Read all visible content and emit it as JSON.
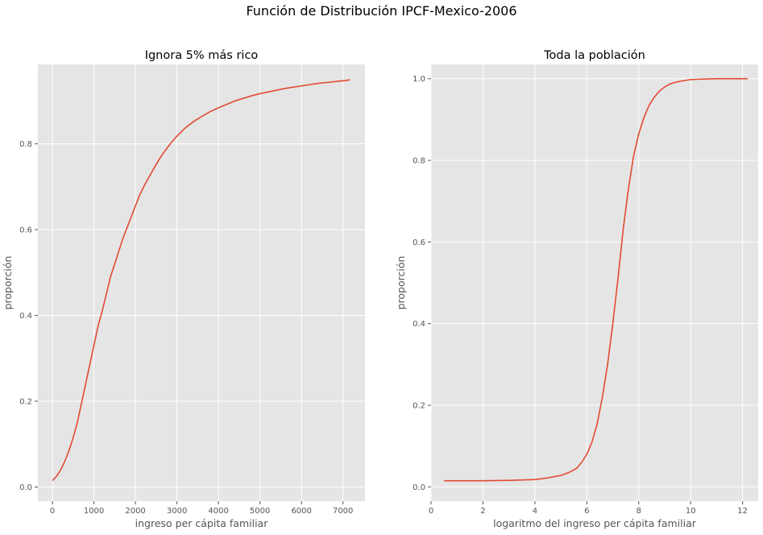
{
  "figure": {
    "title": "Función de Distribución IPCF-Mexico-2006"
  },
  "colors": {
    "panel_bg": "#E5E5E5",
    "grid": "#FFFFFF",
    "line": "#E24A33",
    "tick_text": "#555555"
  },
  "chart_data": [
    {
      "type": "line",
      "title": "Ignora 5% más rico",
      "xlabel": "ingreso per cápita familiar",
      "ylabel": "proporción",
      "xlim": [
        -350,
        7530
      ],
      "ylim": [
        -0.033,
        0.985
      ],
      "xticks": [
        0,
        1000,
        2000,
        3000,
        4000,
        5000,
        6000,
        7000
      ],
      "yticks": [
        0.0,
        0.2,
        0.4,
        0.6,
        0.8
      ],
      "xtick_labels": [
        "0",
        "1000",
        "2000",
        "3000",
        "4000",
        "5000",
        "6000",
        "7000"
      ],
      "ytick_labels": [
        "0.0",
        "0.2",
        "0.4",
        "0.6",
        "0.8"
      ],
      "grid": true,
      "series": [
        {
          "x": [
            0,
            100,
            200,
            300,
            400,
            500,
            600,
            700,
            800,
            900,
            1000,
            1100,
            1200,
            1300,
            1400,
            1500,
            1600,
            1700,
            1800,
            1900,
            2000,
            2100,
            2200,
            2300,
            2400,
            2500,
            2600,
            2700,
            2800,
            2900,
            3000,
            3200,
            3400,
            3600,
            3800,
            4000,
            4200,
            4400,
            4600,
            4800,
            5000,
            5200,
            5400,
            5600,
            5800,
            6000,
            6200,
            6400,
            6600,
            6800,
            7000,
            7170
          ],
          "y": [
            0.015,
            0.025,
            0.04,
            0.06,
            0.085,
            0.115,
            0.15,
            0.195,
            0.24,
            0.285,
            0.33,
            0.375,
            0.41,
            0.45,
            0.49,
            0.52,
            0.55,
            0.58,
            0.605,
            0.63,
            0.655,
            0.68,
            0.7,
            0.718,
            0.735,
            0.752,
            0.768,
            0.782,
            0.795,
            0.807,
            0.818,
            0.837,
            0.852,
            0.864,
            0.875,
            0.884,
            0.892,
            0.9,
            0.906,
            0.912,
            0.917,
            0.921,
            0.925,
            0.929,
            0.932,
            0.935,
            0.938,
            0.941,
            0.943,
            0.945,
            0.947,
            0.949
          ]
        }
      ]
    },
    {
      "type": "line",
      "title": "Toda la población",
      "xlabel": "logaritmo del ingreso per cápita familiar",
      "ylabel": "proporción",
      "xlim": [
        0,
        12.6
      ],
      "ylim": [
        -0.035,
        1.035
      ],
      "xticks": [
        0,
        2,
        4,
        6,
        8,
        10,
        12
      ],
      "yticks": [
        0.0,
        0.2,
        0.4,
        0.6,
        0.8,
        1.0
      ],
      "xtick_labels": [
        "0",
        "2",
        "4",
        "6",
        "8",
        "10",
        "12"
      ],
      "ytick_labels": [
        "0.0",
        "0.2",
        "0.4",
        "0.6",
        "0.8",
        "1.0"
      ],
      "grid": true,
      "series": [
        {
          "x": [
            0.5,
            1.0,
            2.0,
            3.0,
            4.0,
            4.5,
            5.0,
            5.3,
            5.6,
            5.8,
            6.0,
            6.2,
            6.4,
            6.6,
            6.8,
            7.0,
            7.2,
            7.4,
            7.6,
            7.8,
            8.0,
            8.2,
            8.4,
            8.6,
            8.8,
            9.0,
            9.2,
            9.4,
            9.6,
            9.8,
            10.0,
            10.4,
            11.0,
            12.2
          ],
          "y": [
            0.015,
            0.015,
            0.015,
            0.016,
            0.018,
            0.022,
            0.028,
            0.035,
            0.045,
            0.06,
            0.08,
            0.11,
            0.155,
            0.22,
            0.3,
            0.4,
            0.51,
            0.63,
            0.73,
            0.81,
            0.865,
            0.905,
            0.935,
            0.955,
            0.97,
            0.98,
            0.987,
            0.991,
            0.994,
            0.996,
            0.998,
            0.999,
            1.0,
            1.0
          ]
        }
      ]
    }
  ]
}
